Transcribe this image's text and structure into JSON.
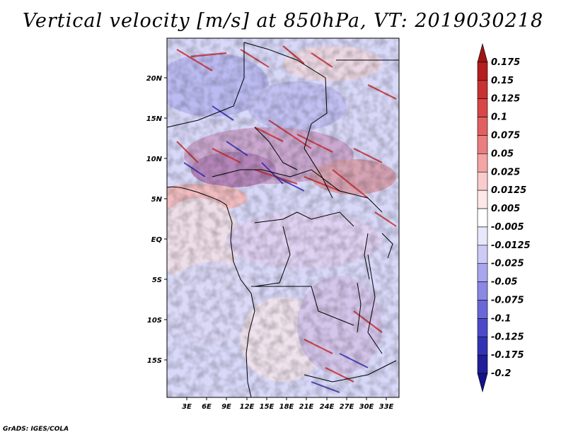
{
  "title": "Vertical velocity [m/s] at 850hPa, VT: 2019030218",
  "footer": "GrADS: IGES/COLA",
  "map": {
    "lat_labels": [
      "20N",
      "15N",
      "10N",
      "5N",
      "EQ",
      "5S",
      "10S",
      "15S"
    ],
    "lon_labels": [
      "3E",
      "6E",
      "9E",
      "12E",
      "15E",
      "18E",
      "21E",
      "24E",
      "27E",
      "30E",
      "33E"
    ],
    "field": "vertical velocity at 850hPa",
    "palette": "blue-white-red"
  },
  "colorbar": {
    "labels": [
      "0.175",
      "0.15",
      "0.125",
      "0.1",
      "0.075",
      "0.05",
      "0.025",
      "0.0125",
      "0.005",
      "-0.005",
      "-0.0125",
      "-0.025",
      "-0.05",
      "-0.075",
      "-0.1",
      "-0.125",
      "-0.175",
      "-0.2"
    ],
    "colors": [
      "#9e1414",
      "#b41e1e",
      "#c83232",
      "#d84646",
      "#e26060",
      "#ea7e7e",
      "#f3a4a4",
      "#f9cbcb",
      "#fde8e8",
      "#ffffff",
      "#e8e8fc",
      "#cccaf6",
      "#a8a6ee",
      "#8a88e4",
      "#6a68d8",
      "#4c4ac8",
      "#3432b4",
      "#201e98",
      "#14128a"
    ]
  }
}
